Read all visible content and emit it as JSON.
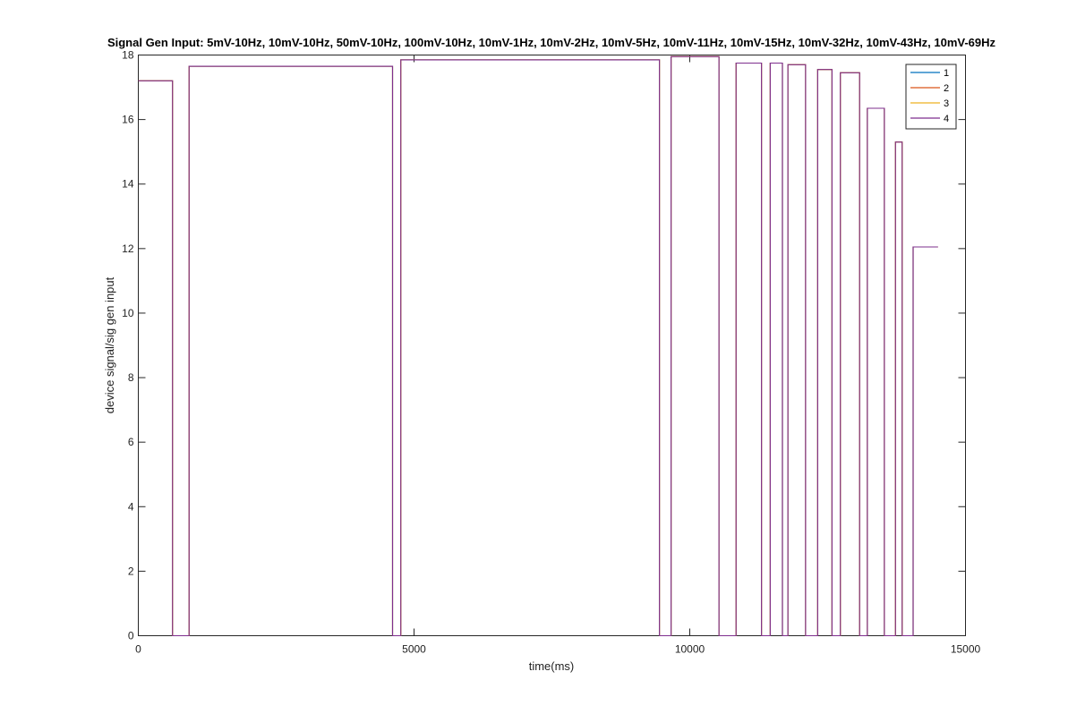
{
  "chart_data": {
    "type": "line",
    "title": "Signal Gen Input: 5mV-10Hz, 10mV-10Hz, 50mV-10Hz, 100mV-10Hz, 10mV-1Hz, 10mV-2Hz, 10mV-5Hz, 10mV-11Hz, 10mV-15Hz, 10mV-32Hz, 10mV-43Hz, 10mV-69Hz",
    "xlabel": "time(ms)",
    "ylabel": "device signal/sig gen input",
    "xlim": [
      0,
      15000
    ],
    "ylim": [
      0,
      18
    ],
    "xticks": [
      0,
      5000,
      10000,
      15000
    ],
    "yticks": [
      0,
      2,
      4,
      6,
      8,
      10,
      12,
      14,
      16,
      18
    ],
    "grid": false,
    "legend_position": "top-right",
    "series": [
      {
        "name": "1",
        "color": "#0072BD",
        "x": [
          0,
          620,
          620,
          920,
          920,
          4610,
          4610,
          4760,
          4760,
          9450,
          9450,
          9660,
          9660,
          10530,
          10530,
          10840,
          10840,
          11300,
          11300,
          11460,
          11460,
          11680,
          11680,
          11780,
          11780,
          12100,
          12100,
          12320,
          12320,
          12580,
          12580,
          12730,
          12730,
          13080,
          13080,
          13220,
          13220,
          13530,
          13530,
          13730,
          13730,
          13850,
          13850,
          14050,
          14050,
          14500
        ],
        "y": [
          17.2,
          17.2,
          0,
          0,
          17.65,
          17.65,
          0,
          0,
          17.85,
          17.85,
          0,
          0,
          17.95,
          17.95,
          0,
          0,
          17.75,
          17.75,
          0,
          0,
          17.75,
          17.75,
          0,
          0,
          17.7,
          17.7,
          0,
          0,
          17.55,
          17.55,
          0,
          0,
          17.45,
          17.45,
          0,
          0,
          16.35,
          16.35,
          0,
          0,
          15.3,
          15.3,
          0,
          0,
          12.05,
          12.05
        ]
      },
      {
        "name": "2",
        "color": "#D95319",
        "x": [
          0,
          620,
          620,
          920,
          920,
          4610,
          4610,
          4760,
          4760,
          9450,
          9450,
          9660,
          9660,
          10530,
          10530,
          10840,
          10840,
          11300,
          11300,
          11460,
          11460,
          11680,
          11680,
          11780,
          11780,
          12100,
          12100,
          12320,
          12320,
          12580,
          12580,
          12730,
          12730,
          13080,
          13080,
          13220,
          13220,
          13530,
          13530,
          13730,
          13730,
          13850,
          13850,
          14050,
          14050,
          14500
        ],
        "y": [
          17.2,
          17.2,
          0,
          0,
          17.65,
          17.65,
          0,
          0,
          17.85,
          17.85,
          0,
          0,
          17.95,
          17.95,
          0,
          0,
          17.75,
          17.75,
          0,
          0,
          17.75,
          17.75,
          0,
          0,
          17.7,
          17.7,
          0,
          0,
          17.55,
          17.55,
          0,
          0,
          17.45,
          17.45,
          0,
          0,
          16.35,
          16.35,
          0,
          0,
          15.3,
          15.3,
          0,
          0,
          12.05,
          12.05
        ]
      },
      {
        "name": "3",
        "color": "#EDB120",
        "x": [
          0,
          620,
          620,
          920,
          920,
          4610,
          4610,
          4760,
          4760,
          9450,
          9450,
          9660,
          9660,
          10530,
          10530,
          10840,
          10840,
          11300,
          11300,
          11460,
          11460,
          11680,
          11680,
          11780,
          11780,
          12100,
          12100,
          12320,
          12320,
          12580,
          12580,
          12730,
          12730,
          13080,
          13080,
          13220,
          13220,
          13530,
          13530,
          13730,
          13730,
          13850,
          13850,
          14050,
          14050,
          14500
        ],
        "y": [
          17.2,
          17.2,
          0,
          0,
          17.65,
          17.65,
          0,
          0,
          17.85,
          17.85,
          0,
          0,
          17.95,
          17.95,
          0,
          0,
          17.75,
          17.75,
          0,
          0,
          17.75,
          17.75,
          0,
          0,
          17.7,
          17.7,
          0,
          0,
          17.55,
          17.55,
          0,
          0,
          17.45,
          17.45,
          0,
          0,
          16.35,
          16.35,
          0,
          0,
          15.3,
          15.3,
          0,
          0,
          12.05,
          12.05
        ]
      },
      {
        "name": "4",
        "color": "#7E2F8E",
        "x": [
          0,
          620,
          620,
          920,
          920,
          4610,
          4610,
          4760,
          4760,
          9450,
          9450,
          9660,
          9660,
          10530,
          10530,
          10840,
          10840,
          11300,
          11300,
          11460,
          11460,
          11680,
          11680,
          11780,
          11780,
          12100,
          12100,
          12320,
          12320,
          12580,
          12580,
          12730,
          12730,
          13080,
          13080,
          13220,
          13220,
          13530,
          13530,
          13730,
          13730,
          13850,
          13850,
          14050,
          14050,
          14500
        ],
        "y": [
          17.2,
          17.2,
          0,
          0,
          17.65,
          17.65,
          0,
          0,
          17.85,
          17.85,
          0,
          0,
          17.95,
          17.95,
          0,
          0,
          17.75,
          17.75,
          0,
          0,
          17.75,
          17.75,
          0,
          0,
          17.7,
          17.7,
          0,
          0,
          17.55,
          17.55,
          0,
          0,
          17.45,
          17.45,
          0,
          0,
          16.35,
          16.35,
          0,
          0,
          15.3,
          15.3,
          0,
          0,
          12.05,
          12.05
        ]
      }
    ]
  }
}
